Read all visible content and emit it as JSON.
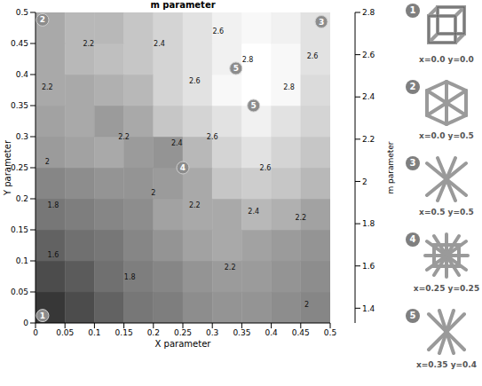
{
  "chart_data": {
    "type": "heatmap",
    "title": "m parameter",
    "x_label": "X parameter",
    "y_label": "Y parameter",
    "xlim": [
      0,
      0.5
    ],
    "ylim": [
      0,
      0.5
    ],
    "xticks": [
      0,
      0.05,
      0.1,
      0.15,
      0.2,
      0.25,
      0.3,
      0.35,
      0.4,
      0.45,
      0.5
    ],
    "yticks": [
      0,
      0.05,
      0.1,
      0.15,
      0.2,
      0.25,
      0.3,
      0.35,
      0.4,
      0.45,
      0.5
    ],
    "x_edges": [
      0,
      0.05,
      0.1,
      0.15,
      0.2,
      0.25,
      0.3,
      0.35,
      0.4,
      0.45,
      0.5
    ],
    "y_edges": [
      0,
      0.05,
      0.1,
      0.15,
      0.2,
      0.25,
      0.3,
      0.35,
      0.4,
      0.45,
      0.5
    ],
    "cells": [
      [
        1.4,
        1.55,
        1.7,
        1.85,
        1.9,
        2.0,
        2.05,
        2.05,
        2.0,
        1.95
      ],
      [
        1.55,
        1.65,
        1.8,
        1.9,
        1.95,
        2.05,
        2.1,
        2.1,
        2.05,
        2.0
      ],
      [
        1.7,
        1.8,
        1.85,
        1.95,
        2.05,
        2.15,
        2.2,
        2.15,
        2.1,
        2.05
      ],
      [
        1.85,
        1.9,
        1.95,
        2.0,
        2.15,
        2.2,
        2.2,
        2.3,
        2.25,
        2.15
      ],
      [
        1.95,
        2.0,
        2.05,
        2.05,
        2.1,
        2.2,
        2.4,
        2.45,
        2.4,
        2.3
      ],
      [
        2.1,
        2.15,
        2.2,
        2.1,
        2.05,
        2.3,
        2.5,
        2.6,
        2.5,
        2.4
      ],
      [
        2.15,
        2.2,
        2.1,
        2.2,
        2.4,
        2.5,
        2.6,
        2.7,
        2.6,
        2.5
      ],
      [
        2.2,
        2.2,
        2.25,
        2.3,
        2.5,
        2.6,
        2.75,
        2.8,
        2.75,
        2.55
      ],
      [
        2.2,
        2.3,
        2.35,
        2.4,
        2.5,
        2.6,
        2.7,
        2.8,
        2.75,
        2.6
      ],
      [
        2.2,
        2.3,
        2.3,
        2.4,
        2.5,
        2.6,
        2.7,
        2.75,
        2.7,
        2.6
      ]
    ],
    "colorbar": {
      "label": "m parameter",
      "range": [
        1.33,
        2.8
      ],
      "ticks": [
        1.4,
        1.6,
        1.8,
        2,
        2.2,
        2.4,
        2.6,
        2.8
      ]
    },
    "contour_labels": [
      {
        "x": 0.03,
        "y": 0.11,
        "value": 1.6
      },
      {
        "x": 0.03,
        "y": 0.19,
        "value": 1.8
      },
      {
        "x": 0.16,
        "y": 0.075,
        "value": 1.8
      },
      {
        "x": 0.02,
        "y": 0.26,
        "value": 2
      },
      {
        "x": 0.2,
        "y": 0.21,
        "value": 2
      },
      {
        "x": 0.46,
        "y": 0.03,
        "value": 2
      },
      {
        "x": 0.02,
        "y": 0.38,
        "value": 2.2
      },
      {
        "x": 0.09,
        "y": 0.45,
        "value": 2.2
      },
      {
        "x": 0.15,
        "y": 0.3,
        "value": 2.2
      },
      {
        "x": 0.27,
        "y": 0.19,
        "value": 2.2
      },
      {
        "x": 0.33,
        "y": 0.09,
        "value": 2.2
      },
      {
        "x": 0.45,
        "y": 0.17,
        "value": 2.2
      },
      {
        "x": 0.21,
        "y": 0.45,
        "value": 2.4
      },
      {
        "x": 0.24,
        "y": 0.29,
        "value": 2.4
      },
      {
        "x": 0.37,
        "y": 0.18,
        "value": 2.4
      },
      {
        "x": 0.31,
        "y": 0.47,
        "value": 2.6
      },
      {
        "x": 0.27,
        "y": 0.39,
        "value": 2.6
      },
      {
        "x": 0.3,
        "y": 0.3,
        "value": 2.6
      },
      {
        "x": 0.47,
        "y": 0.43,
        "value": 2.6
      },
      {
        "x": 0.39,
        "y": 0.25,
        "value": 2.6
      },
      {
        "x": 0.36,
        "y": 0.425,
        "value": 2.8
      },
      {
        "x": 0.43,
        "y": 0.38,
        "value": 2.8
      }
    ],
    "markers": [
      {
        "x": 0.012,
        "y": 0.012,
        "label": "1"
      },
      {
        "x": 0.012,
        "y": 0.488,
        "label": "2"
      },
      {
        "x": 0.485,
        "y": 0.485,
        "label": "3"
      },
      {
        "x": 0.25,
        "y": 0.25,
        "label": "4"
      },
      {
        "x": 0.34,
        "y": 0.41,
        "label": "5"
      },
      {
        "x": 0.37,
        "y": 0.35,
        "label": "5"
      }
    ]
  },
  "panel": {
    "items": [
      {
        "label": "1",
        "text": "x=0.0 y=0.0"
      },
      {
        "label": "2",
        "text": "x=0.0 y=0.5"
      },
      {
        "label": "3",
        "text": "x=0.5 y=0.5"
      },
      {
        "label": "4",
        "text": "x=0.25 y=0.25"
      },
      {
        "label": "5",
        "text": "x=0.35 y=0.4"
      }
    ]
  }
}
